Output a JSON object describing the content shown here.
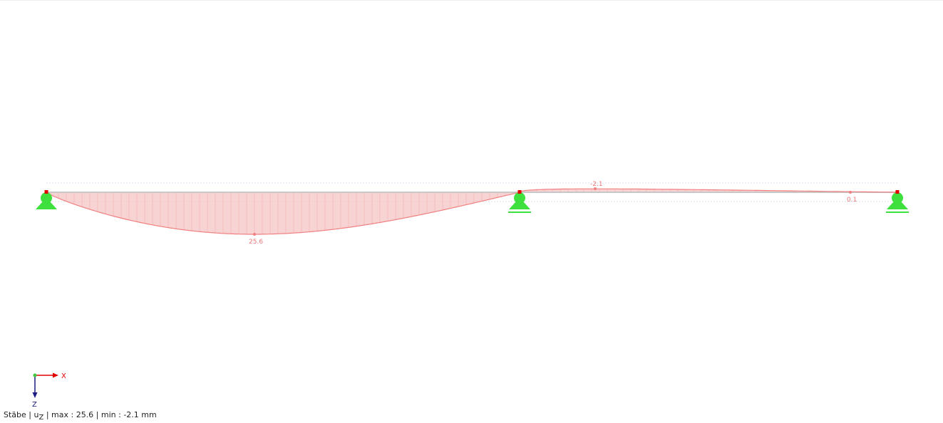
{
  "diagram": {
    "result_label_max": "25.6",
    "result_label_min": "-2.1",
    "result_label_end": "0.1",
    "max_value": 25.6,
    "min_value": -2.1,
    "end_value": 0.1,
    "unit": "mm",
    "colors": {
      "diagram_line": "#f08080",
      "diagram_fill": "#f5c4c4",
      "support": "#3ee03e",
      "node": "#e00000",
      "beam": "#c8c8c8"
    }
  },
  "axes": {
    "x_label": "X",
    "z_label": "Z"
  },
  "status": {
    "prefix": "Stäbe | u",
    "sub": "Z",
    "suffix": " | max  : 25.6 | min  : -2.1 mm"
  }
}
